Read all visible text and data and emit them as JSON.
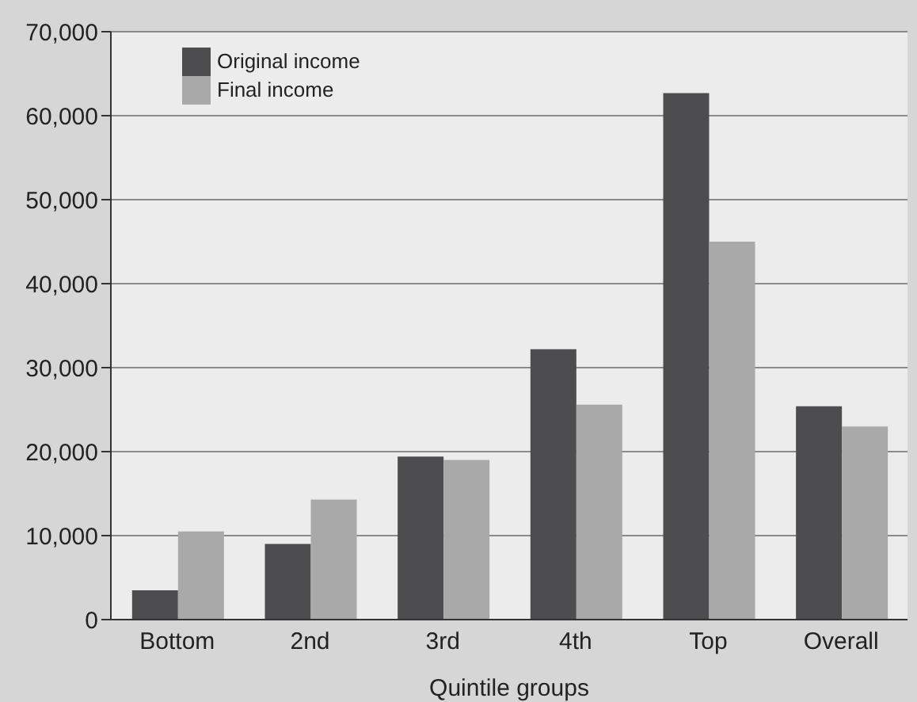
{
  "chart_data": {
    "type": "bar",
    "xlabel": "Quintile groups",
    "categories": [
      "Bottom",
      "2nd",
      "3rd",
      "4th",
      "Top",
      "Overall"
    ],
    "series": [
      {
        "name": "Original income",
        "color": "#4d4d4f",
        "values": [
          3500,
          9000,
          19400,
          32200,
          62700,
          25400
        ]
      },
      {
        "name": "Final income",
        "color": "#a9a9a9",
        "values": [
          10500,
          14300,
          19000,
          25600,
          45000,
          23000
        ]
      }
    ],
    "ylim": [
      0,
      70000
    ],
    "yticks": [
      {
        "value": 0,
        "label": "0"
      },
      {
        "value": 10000,
        "label": "10,000"
      },
      {
        "value": 20000,
        "label": "20,000"
      },
      {
        "value": 30000,
        "label": "30,000"
      },
      {
        "value": 40000,
        "label": "40,000"
      },
      {
        "value": 50000,
        "label": "50,000"
      },
      {
        "value": 60000,
        "label": "60,000"
      },
      {
        "value": 70000,
        "label": "70,000"
      }
    ],
    "grid": "y",
    "legend": "top left"
  }
}
